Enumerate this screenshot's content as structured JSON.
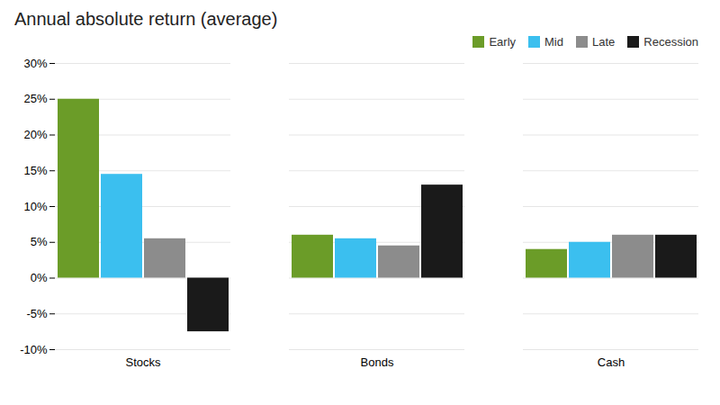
{
  "chart_data": {
    "type": "bar",
    "title": "Annual absolute return (average)",
    "categories": [
      "Stocks",
      "Bonds",
      "Cash"
    ],
    "series": [
      {
        "name": "Early",
        "color": "#6b9c28",
        "values": [
          25.0,
          6.0,
          4.0
        ]
      },
      {
        "name": "Mid",
        "color": "#3bbfef",
        "values": [
          14.5,
          5.5,
          5.0
        ]
      },
      {
        "name": "Late",
        "color": "#8c8c8c",
        "values": [
          5.5,
          4.5,
          6.0
        ]
      },
      {
        "name": "Recession",
        "color": "#1a1a1a",
        "values": [
          -7.5,
          13.0,
          6.0
        ]
      }
    ],
    "ylim": [
      -10,
      30
    ],
    "yticks": [
      {
        "value": -10,
        "label": "-10%"
      },
      {
        "value": -5,
        "label": "-5%"
      },
      {
        "value": 0,
        "label": "0%"
      },
      {
        "value": 5,
        "label": "5%"
      },
      {
        "value": 10,
        "label": "10%"
      },
      {
        "value": 15,
        "label": "15%"
      },
      {
        "value": 20,
        "label": "20%"
      },
      {
        "value": 25,
        "label": "25%"
      },
      {
        "value": 30,
        "label": "30%"
      }
    ],
    "grid": true,
    "legend": "upper right"
  }
}
